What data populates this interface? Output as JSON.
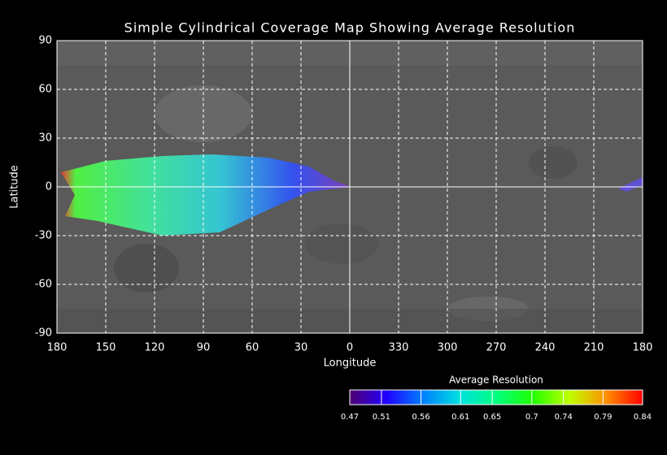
{
  "chart_data": {
    "type": "map",
    "title": "Simple Cylindrical Coverage Map Showing Average Resolution",
    "x_label": "Longitude",
    "y_label": "Latitude",
    "xlim": [
      180,
      -180
    ],
    "xticks": [
      180,
      150,
      120,
      90,
      60,
      30,
      0,
      {
        "value": -30,
        "label": "330"
      },
      {
        "value": -60,
        "label": "300"
      },
      {
        "value": -90,
        "label": "270"
      },
      {
        "value": -120,
        "label": "240"
      },
      {
        "value": -150,
        "label": "210"
      },
      {
        "value": -180,
        "label": "180"
      }
    ],
    "ylim": [
      -90,
      90
    ],
    "yticks": [
      90,
      60,
      30,
      0,
      -30,
      -60,
      -90
    ],
    "grid": true,
    "colorbar": {
      "title": "Average Resolution",
      "lim": [
        0.47,
        0.84
      ],
      "ticks": [
        0.47,
        0.51,
        0.56,
        0.61,
        0.65,
        0.7,
        0.74,
        0.79,
        0.84
      ],
      "colors": [
        "#500070",
        "#2000ff",
        "#0080ff",
        "#00e0e0",
        "#00ff80",
        "#20ff00",
        "#c0ff00",
        "#ff9000",
        "#ff0000"
      ]
    }
  }
}
